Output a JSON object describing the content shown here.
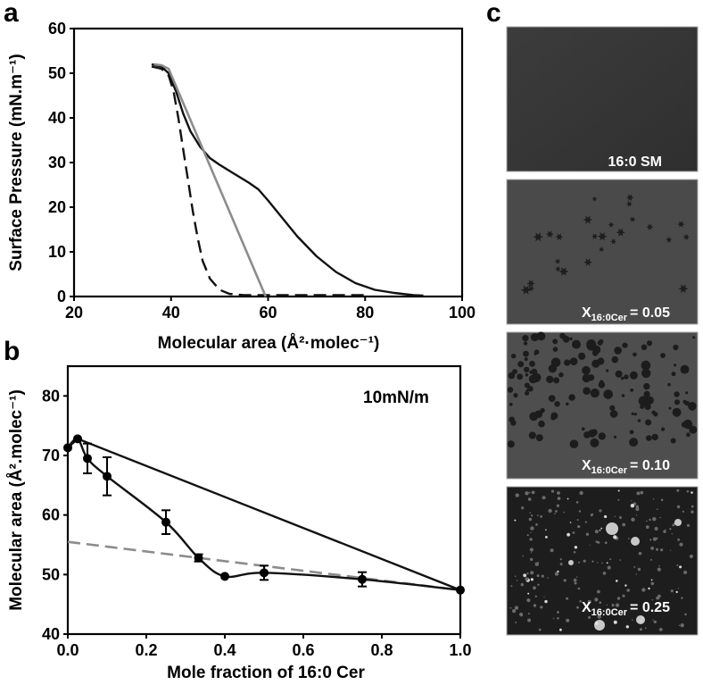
{
  "panel_letters": {
    "a": "a",
    "b": "b",
    "c": "c"
  },
  "chart_data": [
    {
      "panel": "a",
      "type": "line",
      "xlabel": "Molecular area (Å²·molec⁻¹)",
      "ylabel": "Surface Pressure (mN.m⁻¹)",
      "xlim": [
        20,
        100
      ],
      "ylim": [
        0,
        60
      ],
      "xticks": [
        20,
        40,
        60,
        80,
        100
      ],
      "yticks": [
        0,
        10,
        20,
        30,
        40,
        50,
        60
      ],
      "grid": false,
      "series": [
        {
          "style": "solid",
          "color": "#111111",
          "points": [
            [
              36,
              52
            ],
            [
              38,
              51.5
            ],
            [
              39.5,
              50
            ],
            [
              41,
              46
            ],
            [
              42.5,
              41
            ],
            [
              44,
              37
            ],
            [
              46,
              33.5
            ],
            [
              48,
              31
            ],
            [
              50,
              29.5
            ],
            [
              53,
              27.5
            ],
            [
              56,
              25.5
            ],
            [
              58,
              24
            ],
            [
              60,
              21.5
            ],
            [
              63,
              17.5
            ],
            [
              66,
              13.5
            ],
            [
              70,
              9
            ],
            [
              74,
              5.5
            ],
            [
              78,
              3
            ],
            [
              82,
              1.5
            ],
            [
              86,
              0.8
            ],
            [
              90,
              0.3
            ],
            [
              92,
              0.2
            ]
          ]
        },
        {
          "style": "dashed",
          "color": "#111111",
          "points": [
            [
              36,
              51.5
            ],
            [
              38,
              51
            ],
            [
              39.5,
              49.5
            ],
            [
              40.5,
              46
            ],
            [
              41.5,
              40
            ],
            [
              42.5,
              33
            ],
            [
              43.5,
              26
            ],
            [
              44.5,
              19
            ],
            [
              45.5,
              13
            ],
            [
              46.5,
              8
            ],
            [
              48,
              4
            ],
            [
              50,
              1.5
            ],
            [
              52,
              0.6
            ],
            [
              55,
              0.3
            ],
            [
              60,
              0.3
            ],
            [
              70,
              0.3
            ],
            [
              80,
              0.3
            ]
          ]
        },
        {
          "style": "solid",
          "color": "#8c8c8c",
          "points": [
            [
              36.5,
              52
            ],
            [
              38,
              51.8
            ],
            [
              39.5,
              51
            ],
            [
              59.5,
              0
            ]
          ]
        }
      ]
    },
    {
      "panel": "b",
      "type": "line",
      "xlabel": "Mole fraction of 16:0 Cer",
      "ylabel": "Molecular area (Å².molec⁻¹)",
      "annotation": "10mN/m",
      "xlim": [
        0,
        1
      ],
      "ylim": [
        40,
        85
      ],
      "xticks": [
        "0.0",
        "0.2",
        "0.4",
        "0.6",
        "0.8",
        "1.0"
      ],
      "yticks": [
        40,
        50,
        60,
        70,
        80
      ],
      "grid": false,
      "series": [
        {
          "style": "solid-with-markers",
          "color": "#111111",
          "x": [
            0,
            0.025,
            0.05,
            0.1,
            0.25,
            0.333,
            0.4,
            0.5,
            0.75,
            1.0
          ],
          "y": [
            71.3,
            72.8,
            69.5,
            66.5,
            58.8,
            52.8,
            49.7,
            50.3,
            49.2,
            47.4
          ],
          "error": [
            0,
            0,
            2.5,
            3.2,
            2.0,
            0.6,
            0,
            1.2,
            1.2,
            0
          ]
        },
        {
          "style": "solid",
          "color": "#111111",
          "x": [
            0,
            0.025,
            1.0
          ],
          "y": [
            71.3,
            72.8,
            47.4
          ]
        },
        {
          "style": "dashed",
          "color": "#8c8c8c",
          "x": [
            0,
            1.0
          ],
          "y": [
            55.5,
            47.4
          ]
        }
      ]
    }
  ],
  "panel_c": {
    "images": [
      {
        "label": "16:0 SM",
        "prefix": "",
        "subscript": "",
        "value": ""
      },
      {
        "label": "",
        "prefix": "X",
        "subscript": "16:0Cer",
        "value": "= 0.05"
      },
      {
        "label": "",
        "prefix": "X",
        "subscript": "16:0Cer",
        "value": "= 0.10"
      },
      {
        "label": "",
        "prefix": "X",
        "subscript": "16:0Cer",
        "value": "= 0.25"
      }
    ]
  }
}
